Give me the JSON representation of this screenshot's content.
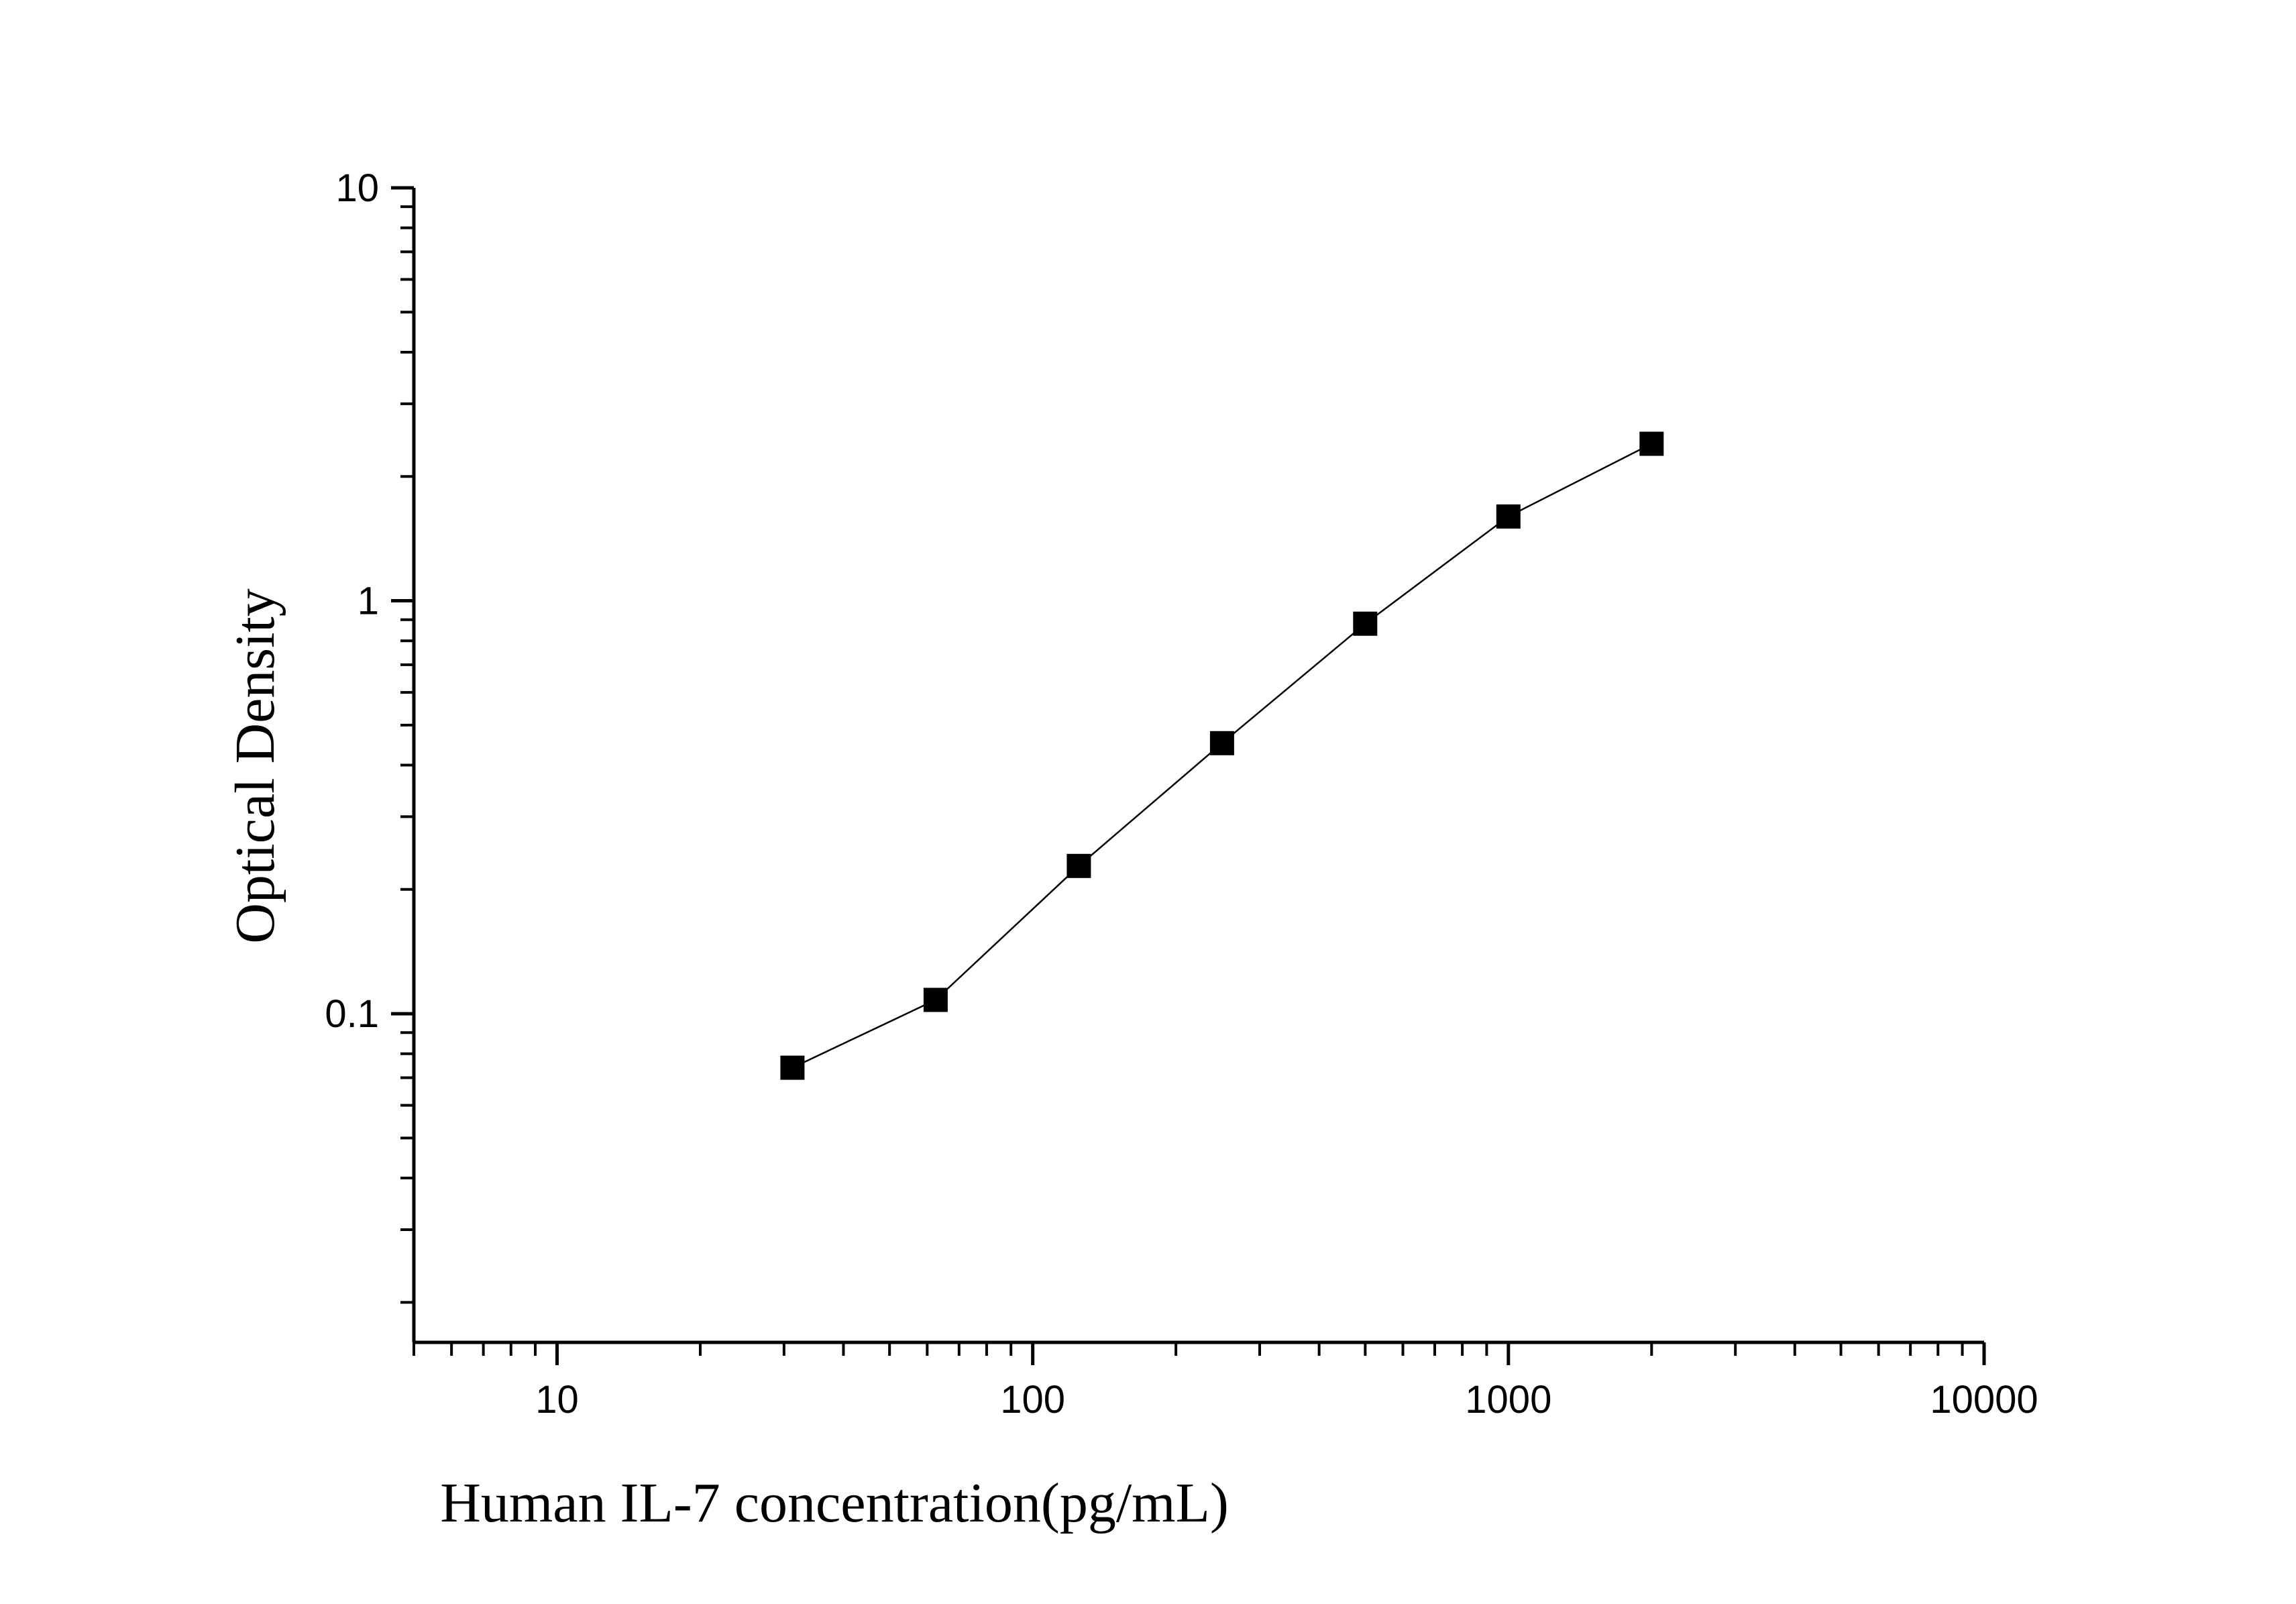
{
  "chart_data": {
    "type": "scatter",
    "xlabel": "Human IL-7 concentration(pg/mL)",
    "ylabel": "Optical Density",
    "x_scale": "log",
    "y_scale": "log",
    "xlim": [
      5,
      10000
    ],
    "ylim": [
      0.016,
      10
    ],
    "x_ticks": [
      10,
      100,
      1000,
      10000
    ],
    "x_tick_labels": [
      "10",
      "100",
      "1000",
      "10000"
    ],
    "y_ticks": [
      0.1,
      1,
      10
    ],
    "y_tick_labels": [
      "0.1",
      "1",
      "10"
    ],
    "grid": false,
    "legend": "none",
    "marker": "square",
    "connected": true,
    "colors": {
      "series": "#000000",
      "axes": "#000000",
      "background": "#ffffff"
    },
    "series": [
      {
        "x": [
          31.25,
          62.5,
          125,
          250,
          500,
          1000,
          2000
        ],
        "y": [
          0.074,
          0.108,
          0.228,
          0.452,
          0.88,
          1.6,
          2.4
        ]
      }
    ]
  }
}
